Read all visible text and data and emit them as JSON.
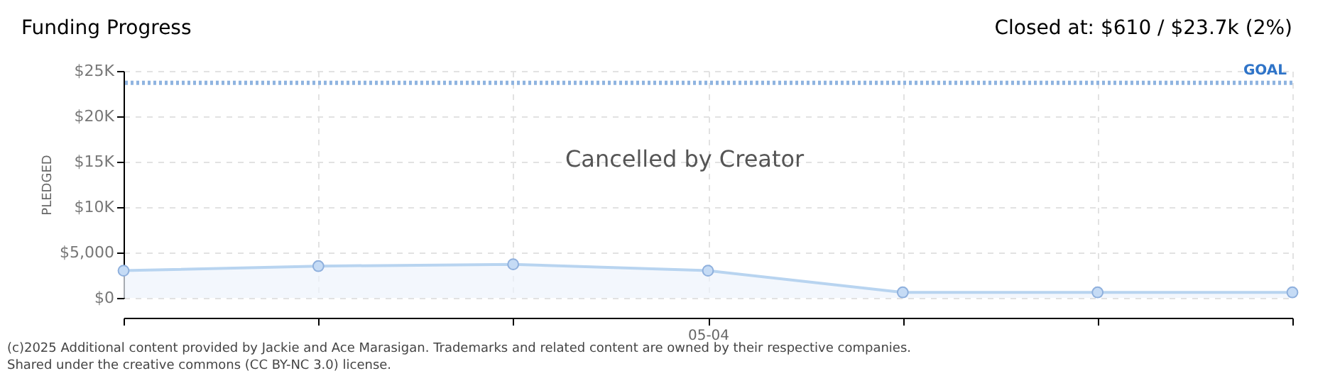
{
  "chart_data": {
    "type": "area",
    "title": "Funding Progress",
    "ylabel": "PLEDGED",
    "categories": [
      null,
      null,
      null,
      "05-04",
      null,
      null,
      null
    ],
    "series": [
      {
        "color": "#b8d4f0",
        "values": [
          3000,
          3500,
          3700,
          3000,
          610,
          610,
          610
        ]
      }
    ],
    "ylim": [
      0,
      25000
    ],
    "yticks": [
      {
        "value": 0,
        "label": "$0"
      },
      {
        "value": 5000,
        "label": "$5,000"
      },
      {
        "value": 10000,
        "label": "$10K"
      },
      {
        "value": 15000,
        "label": "$15K"
      },
      {
        "value": 20000,
        "label": "$20K"
      },
      {
        "value": 25000,
        "label": "$25K"
      }
    ],
    "ref_lines": [
      {
        "axis": "y",
        "value": 23700,
        "label": "GOAL",
        "color": "#8fb4e0",
        "line_style": "dotted"
      }
    ],
    "annotations": [
      "Closed at: $610 / $23.7k (2%)",
      "Cancelled by Creator",
      "(c)2025 Additional content provided by Jackie and Ace Marasigan. Trademarks and related content are owned by their respective companies.",
      "Shared under the creative commons (CC BY-NC 3.0) license."
    ],
    "grid": true,
    "legend": false,
    "marker": "circle",
    "line_style": "solid"
  }
}
